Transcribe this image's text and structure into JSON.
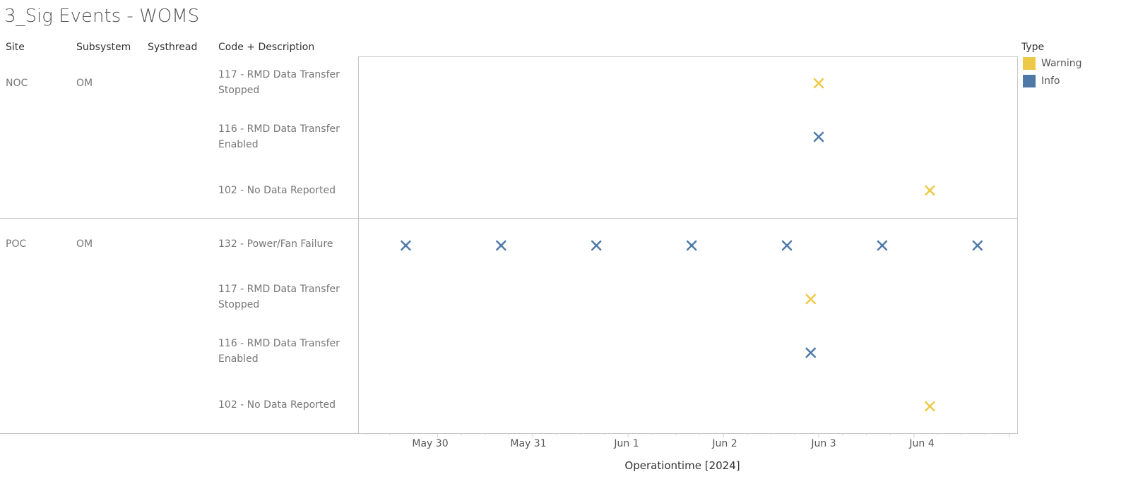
{
  "title": "3_Sig Events - WOMS",
  "columns": {
    "site": "Site",
    "subsystem": "Subsystem",
    "systhread": "Systhread",
    "code": "Code + Description"
  },
  "groups": [
    {
      "site": "NOC",
      "subsystem": "OM",
      "rows": [
        {
          "line1": "117 - RMD Data Transfer",
          "line2": "Stopped"
        },
        {
          "line1": "116 - RMD Data Transfer",
          "line2": "Enabled"
        },
        {
          "line1": "102 - No Data Reported",
          "line2": ""
        }
      ]
    },
    {
      "site": "POC",
      "subsystem": "OM",
      "rows": [
        {
          "line1": "132 - Power/Fan Failure",
          "line2": ""
        },
        {
          "line1": "117 - RMD Data Transfer",
          "line2": "Stopped"
        },
        {
          "line1": "116 - RMD Data Transfer",
          "line2": "Enabled"
        },
        {
          "line1": "102 - No Data Reported",
          "line2": ""
        }
      ]
    }
  ],
  "legend": {
    "title": "Type",
    "items": [
      {
        "label": "Warning",
        "color": "#EDC948"
      },
      {
        "label": "Info",
        "color": "#4E79A7"
      }
    ]
  },
  "colors": {
    "Warning": "#EDC948",
    "Info": "#4E79A7"
  },
  "chart_data": {
    "type": "scatter",
    "xlabel": "Operationtime [2024]",
    "x_ticks": [
      "May 30",
      "May 31",
      "Jun 1",
      "Jun 2",
      "Jun 3",
      "Jun 4"
    ],
    "x_range": [
      "2024-05-29 04:00",
      "2024-06-05 02:00"
    ],
    "rows": [
      "NOC|117",
      "NOC|116",
      "NOC|102",
      "POC|132",
      "POC|117",
      "POC|116",
      "POC|102"
    ],
    "points": [
      {
        "row": 0,
        "x": "2024-06-03 00:00",
        "type": "Warning"
      },
      {
        "row": 1,
        "x": "2024-06-03 00:00",
        "type": "Info"
      },
      {
        "row": 2,
        "x": "2024-06-04 04:00",
        "type": "Warning"
      },
      {
        "row": 3,
        "x": "2024-05-29 16:00",
        "type": "Info"
      },
      {
        "row": 3,
        "x": "2024-05-30 16:00",
        "type": "Info"
      },
      {
        "row": 3,
        "x": "2024-05-31 16:00",
        "type": "Info"
      },
      {
        "row": 3,
        "x": "2024-06-01 16:00",
        "type": "Info"
      },
      {
        "row": 3,
        "x": "2024-06-02 16:00",
        "type": "Info"
      },
      {
        "row": 3,
        "x": "2024-06-03 16:00",
        "type": "Info"
      },
      {
        "row": 3,
        "x": "2024-06-04 16:00",
        "type": "Info"
      },
      {
        "row": 4,
        "x": "2024-06-02 22:00",
        "type": "Warning"
      },
      {
        "row": 5,
        "x": "2024-06-02 22:00",
        "type": "Info"
      },
      {
        "row": 6,
        "x": "2024-06-04 04:00",
        "type": "Warning"
      }
    ]
  }
}
